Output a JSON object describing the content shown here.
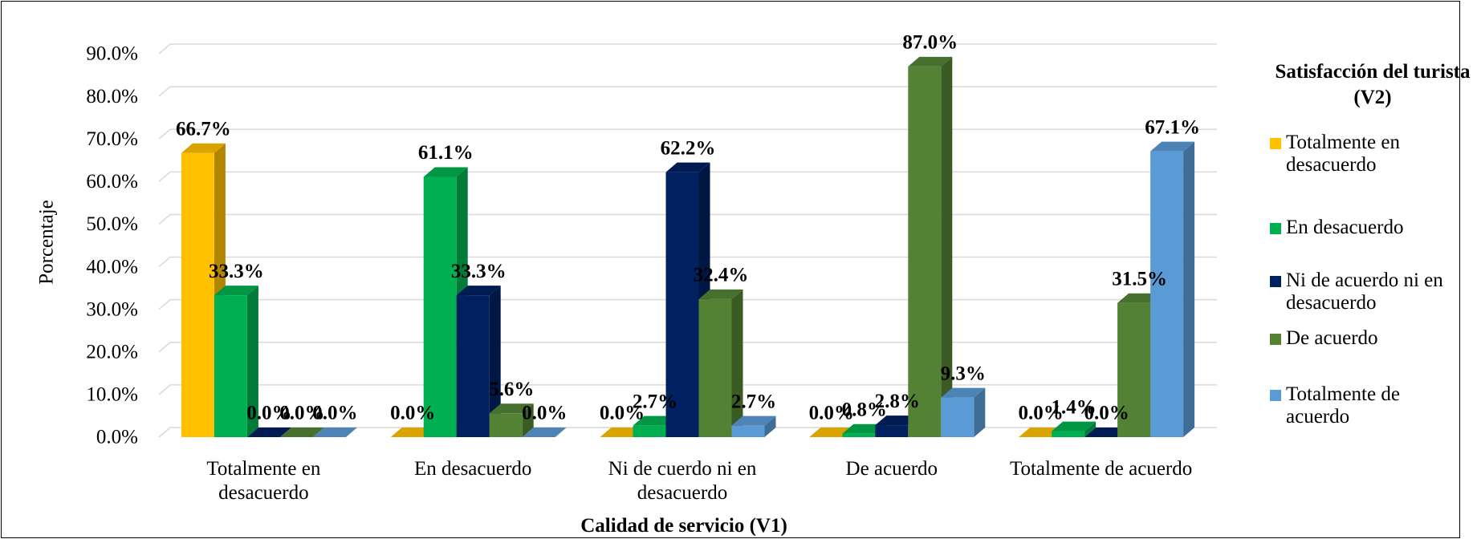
{
  "chart_data": {
    "type": "bar3d",
    "x_label": "Calidad de servicio (V1)",
    "y_label": "Porcentaje",
    "legend_title": "Satisfacción del turista (V2)",
    "categories": [
      "Totalmente en desacuerdo",
      "En desacuerdo",
      "Ni de cuerdo ni en desacuerdo",
      "De acuerdo",
      "Totalmente de acuerdo"
    ],
    "series": [
      {
        "name": "Totalmente en desacuerdo",
        "color": "#FFC000",
        "values": [
          66.7,
          0.0,
          0.0,
          0.0,
          0.0
        ],
        "value_labels": [
          "66.7%",
          "0.0%",
          "0.0%",
          "0.0%",
          "0.0%"
        ]
      },
      {
        "name": "En desacuerdo",
        "color": "#00B050",
        "values": [
          33.3,
          61.1,
          2.7,
          0.8,
          1.4
        ],
        "value_labels": [
          "33.3%",
          "61.1%",
          "2.7%",
          "0.8%",
          "1.4%"
        ]
      },
      {
        "name": "Ni de acuerdo ni en desacuerdo",
        "color": "#002060",
        "values": [
          0.0,
          33.3,
          62.2,
          2.8,
          0.0
        ],
        "value_labels": [
          "0.0%",
          "33.3%",
          "62.2%",
          "2.8%",
          "0.0%"
        ]
      },
      {
        "name": "De acuerdo",
        "color": "#548235",
        "values": [
          0.0,
          5.6,
          32.4,
          87.0,
          31.5
        ],
        "value_labels": [
          "0.0%",
          "5.6%",
          "32.4%",
          "87.0%",
          "31.5%"
        ]
      },
      {
        "name": "Totalmente de acuerdo",
        "color": "#5B9BD5",
        "values": [
          0.0,
          0.0,
          2.7,
          9.3,
          67.1
        ],
        "value_labels": [
          "0.0%",
          "0.0%",
          "2.7%",
          "9.3%",
          "67.1%"
        ]
      }
    ],
    "ylim": [
      0,
      90
    ],
    "yticks": [
      {
        "value": 0,
        "label": "0.0%"
      },
      {
        "value": 10,
        "label": "10.0%"
      },
      {
        "value": 20,
        "label": "20.0%"
      },
      {
        "value": 30,
        "label": "30.0%"
      },
      {
        "value": 40,
        "label": "40.0%"
      },
      {
        "value": 50,
        "label": "50.0%"
      },
      {
        "value": 60,
        "label": "60.0%"
      },
      {
        "value": 70,
        "label": "70.0%"
      },
      {
        "value": 80,
        "label": "80.0%"
      },
      {
        "value": 90,
        "label": "90.0%"
      }
    ],
    "grid": true,
    "legend": "right"
  }
}
